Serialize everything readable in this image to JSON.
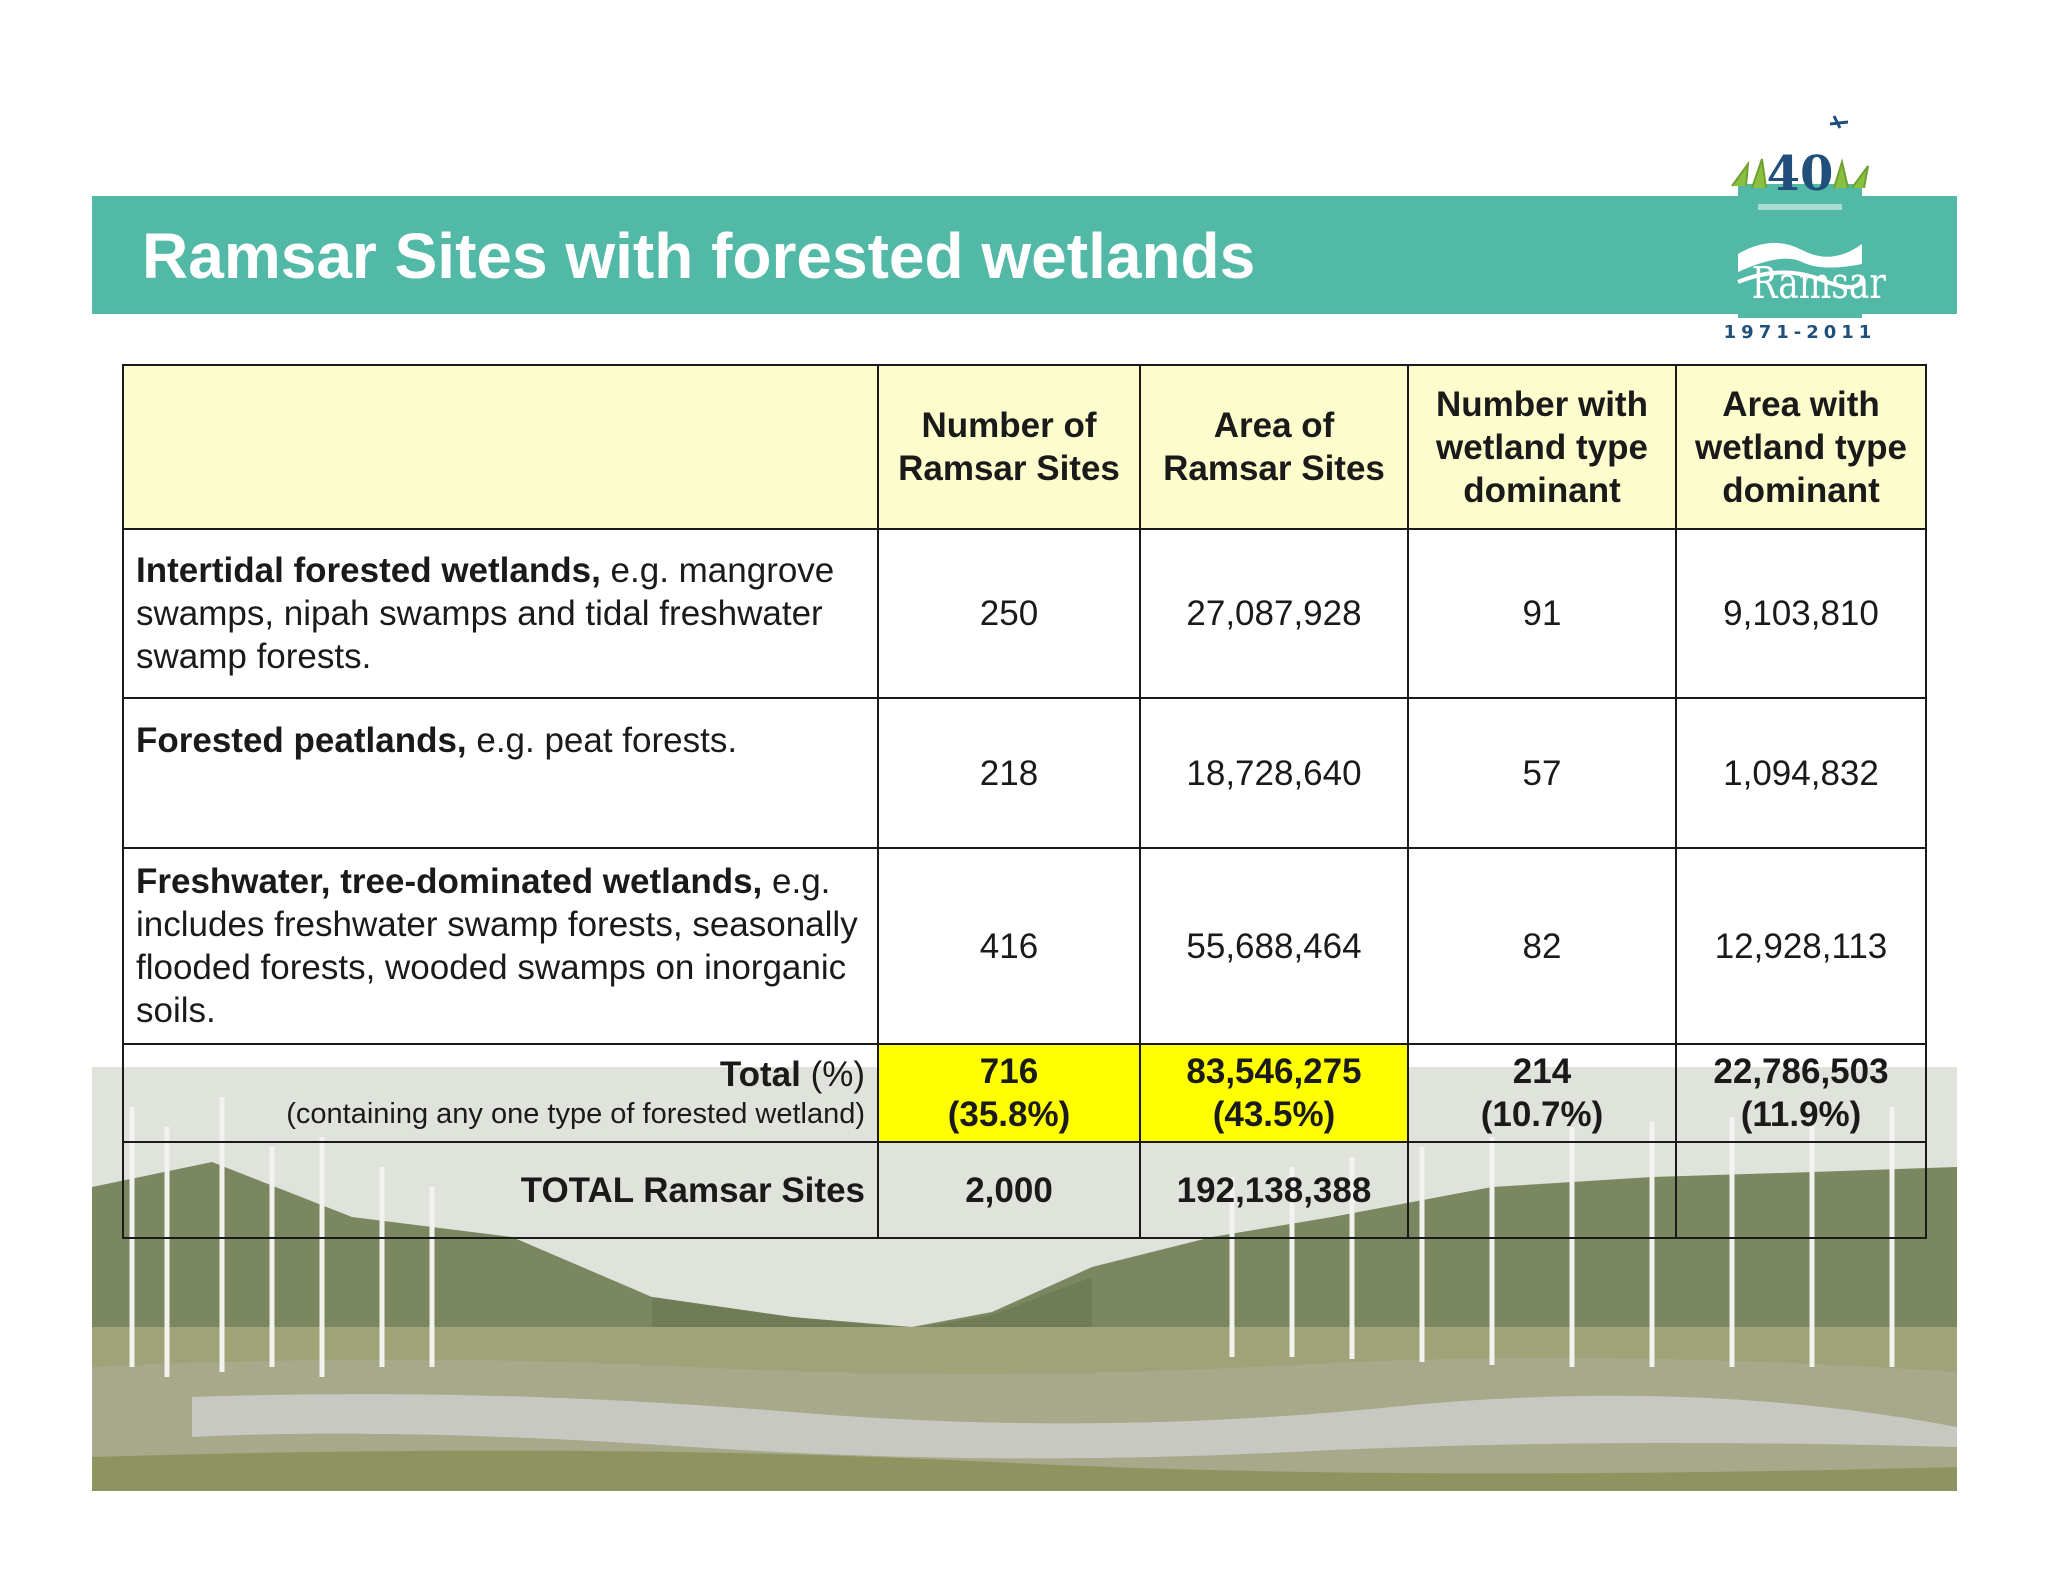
{
  "slide": {
    "title": "Ramsar Sites with forested wetlands"
  },
  "logo": {
    "anniversary": "40",
    "name": "Ramsar",
    "years": "1971-2011",
    "icon": "ramsar-40th-anniversary-logo"
  },
  "table": {
    "headers": [
      "",
      "Number of Ramsar Sites",
      "Area of Ramsar Sites",
      "Number with wetland type dominant",
      "Area with wetland type dominant"
    ],
    "rows": [
      {
        "title": "Intertidal forested wetlands,",
        "description": " e.g. mangrove swamps, nipah swamps and tidal freshwater swamp forests.",
        "values": [
          "250",
          "27,087,928",
          "91",
          "9,103,810"
        ]
      },
      {
        "title": "Forested peatlands,",
        "description": " e.g. peat forests.",
        "values": [
          "218",
          "18,728,640",
          "57",
          "1,094,832"
        ]
      },
      {
        "title": "Freshwater, tree-dominated wetlands,",
        "description": " e.g. includes freshwater swamp forests, seasonally flooded forests, wooded swamps on inorganic soils.",
        "values": [
          "416",
          "55,688,464",
          "82",
          "12,928,113"
        ]
      }
    ],
    "total": {
      "label_bold": "Total ",
      "label_normal": "(%)",
      "sublabel": "(containing any one type of forested wetland)",
      "values": [
        {
          "value": "716",
          "pct": "(35.8%)"
        },
        {
          "value": "83,546,275",
          "pct": "(43.5%)"
        },
        {
          "value": "214",
          "pct": "(10.7%)"
        },
        {
          "value": "22,786,503",
          "pct": "(11.9%)"
        }
      ]
    },
    "grand_total": {
      "label": "TOTAL Ramsar Sites",
      "values": [
        "2,000",
        "192,138,388",
        "",
        ""
      ]
    }
  },
  "colors": {
    "title_bar": "#52b9a7",
    "header_fill": "#fcfccc",
    "highlight": "#ffff00"
  }
}
